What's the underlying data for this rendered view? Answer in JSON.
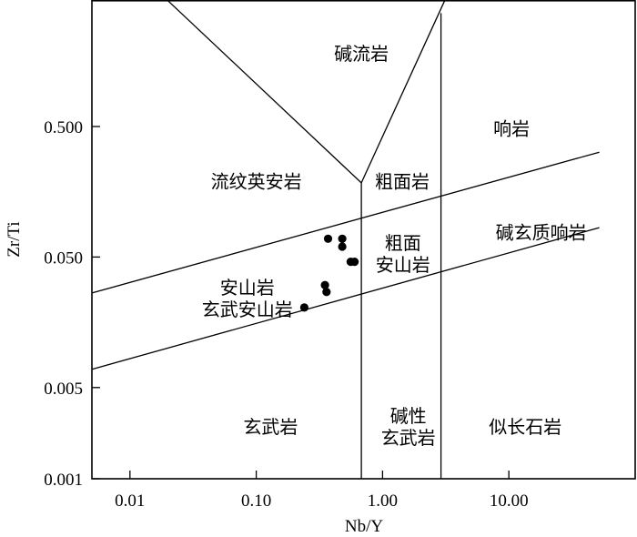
{
  "chart_data": {
    "type": "scatter",
    "title": "",
    "xlabel": "Nb/Y",
    "ylabel": "Zr/Ti",
    "xscale": "log",
    "yscale": "log",
    "xlim": [
      0.005,
      100
    ],
    "ylim": [
      0.001,
      4.6
    ],
    "x_ticks": [
      {
        "value": 0.01,
        "label": "0.01"
      },
      {
        "value": 0.1,
        "label": "0.10"
      },
      {
        "value": 1,
        "label": "1.00"
      },
      {
        "value": 10,
        "label": "10.00"
      }
    ],
    "y_ticks": [
      {
        "value": 0.001,
        "label": "0.001"
      },
      {
        "value": 0.005,
        "label": "0.005"
      },
      {
        "value": 0.05,
        "label": "0.050"
      },
      {
        "value": 0.5,
        "label": "0.500"
      }
    ],
    "grid": false,
    "points": [
      {
        "x": 0.37,
        "y": 0.069
      },
      {
        "x": 0.48,
        "y": 0.069
      },
      {
        "x": 0.48,
        "y": 0.06
      },
      {
        "x": 0.56,
        "y": 0.046
      },
      {
        "x": 0.6,
        "y": 0.046
      },
      {
        "x": 0.35,
        "y": 0.0305
      },
      {
        "x": 0.36,
        "y": 0.027
      },
      {
        "x": 0.24,
        "y": 0.0205
      }
    ],
    "boundaries": [
      {
        "name": "upper-diagonal",
        "points": [
          [
            0.005,
            0.0265
          ],
          [
            52,
            0.318
          ]
        ]
      },
      {
        "name": "lower-diagonal",
        "points": [
          [
            0.005,
            0.0069
          ],
          [
            52,
            0.084
          ]
        ]
      },
      {
        "name": "alkali-rhyolite-left",
        "points": [
          [
            0.02,
            4.6
          ],
          [
            0.68,
            0.185
          ]
        ]
      },
      {
        "name": "alkali-rhyolite-right",
        "points": [
          [
            0.68,
            0.185
          ],
          [
            3.1,
            4.6
          ]
        ]
      },
      {
        "name": "vertical-nb-y-0.68",
        "points": [
          [
            0.68,
            0.185
          ],
          [
            0.68,
            0.001
          ]
        ]
      },
      {
        "name": "vertical-nb-y-2.9",
        "points": [
          [
            2.9,
            3.7
          ],
          [
            2.9,
            0.001
          ]
        ]
      }
    ],
    "field_labels": [
      {
        "lines": [
          "碱流岩"
        ],
        "x": 0.68,
        "y": 1.8
      },
      {
        "lines": [
          "响岩"
        ],
        "x": 10.5,
        "y": 0.48
      },
      {
        "lines": [
          "流纹英安岩"
        ],
        "x": 0.1,
        "y": 0.19
      },
      {
        "lines": [
          "粗面岩"
        ],
        "x": 1.43,
        "y": 0.19
      },
      {
        "lines": [
          "碱玄质响岩"
        ],
        "x": 18,
        "y": 0.077
      },
      {
        "lines": [
          "粗面",
          "安山岩"
        ],
        "x": 1.45,
        "y": 0.053
      },
      {
        "lines": [
          "安山岩",
          "玄武安山岩"
        ],
        "x": 0.085,
        "y": 0.024
      },
      {
        "lines": [
          "玄武岩"
        ],
        "x": 0.13,
        "y": 0.0025
      },
      {
        "lines": [
          "碱性",
          "玄武岩"
        ],
        "x": 1.6,
        "y": 0.0025
      },
      {
        "lines": [
          "似长石岩"
        ],
        "x": 13.5,
        "y": 0.0025
      }
    ]
  }
}
